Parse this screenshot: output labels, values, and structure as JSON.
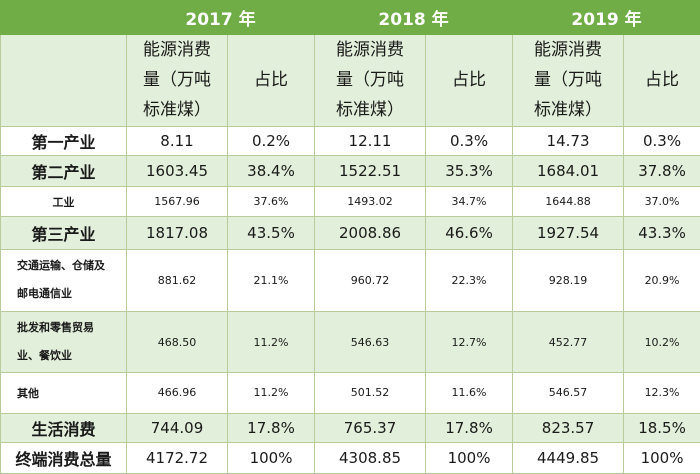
{
  "years": [
    "2017 年",
    "2018 年",
    "2019 年"
  ],
  "subheaders": {
    "consumption": [
      "能源消费",
      "量（万吨",
      "标准煤）"
    ],
    "share": "占比"
  },
  "rows": [
    {
      "label": "第一产业",
      "values": [
        "8.11",
        "0.2%",
        "12.11",
        "0.3%",
        "14.73",
        "0.3%"
      ]
    },
    {
      "label": "第二产业",
      "values": [
        "1603.45",
        "38.4%",
        "1522.51",
        "35.3%",
        "1684.01",
        "37.8%"
      ]
    },
    {
      "label": "工业",
      "values": [
        "1567.96",
        "37.6%",
        "1493.02",
        "34.7%",
        "1644.88",
        "37.0%"
      ]
    },
    {
      "label": "第三产业",
      "values": [
        "1817.08",
        "43.5%",
        "2008.86",
        "46.6%",
        "1927.54",
        "43.3%"
      ]
    },
    {
      "label_lines": [
        "交通运输、仓储及",
        "邮电通信业"
      ],
      "values": [
        "881.62",
        "21.1%",
        "960.72",
        "22.3%",
        "928.19",
        "20.9%"
      ]
    },
    {
      "label_lines": [
        "批发和零售贸易",
        "业、餐饮业"
      ],
      "values": [
        "468.50",
        "11.2%",
        "546.63",
        "12.7%",
        "452.77",
        "10.2%"
      ]
    },
    {
      "label": "其他",
      "values": [
        "466.96",
        "11.2%",
        "501.52",
        "11.6%",
        "546.57",
        "12.3%"
      ]
    },
    {
      "label": "生活消费",
      "values": [
        "744.09",
        "17.8%",
        "765.37",
        "17.8%",
        "823.57",
        "18.5%"
      ]
    },
    {
      "label": "终端消费总量",
      "values": [
        "4172.72",
        "100%",
        "4308.85",
        "100%",
        "4449.85",
        "100%"
      ]
    }
  ]
}
